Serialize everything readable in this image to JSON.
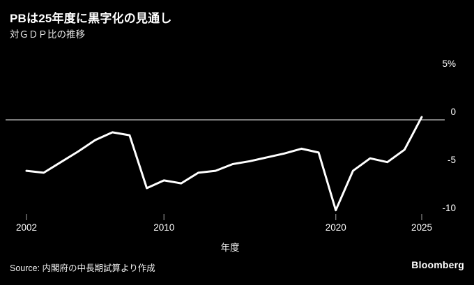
{
  "chart_data": {
    "type": "line",
    "title": "PBは25年度に黒字化の見通し",
    "subtitle": "対ＧＤＰ比の推移",
    "xlabel": "年度",
    "ylabel": "",
    "unit": "%",
    "x": [
      2002,
      2003,
      2004,
      2005,
      2006,
      2007,
      2008,
      2009,
      2010,
      2011,
      2012,
      2013,
      2014,
      2015,
      2016,
      2017,
      2018,
      2019,
      2020,
      2021,
      2022,
      2023,
      2024,
      2025
    ],
    "values": [
      -5.3,
      -5.5,
      -4.4,
      -3.3,
      -2.1,
      -1.3,
      -1.6,
      -7.1,
      -6.3,
      -6.6,
      -5.5,
      -5.3,
      -4.6,
      -4.3,
      -3.9,
      -3.5,
      -3.0,
      -3.4,
      -9.4,
      -5.3,
      -4.0,
      -4.4,
      -3.1,
      0.3
    ],
    "ylim": [
      -10,
      5
    ],
    "xlim": [
      2002,
      2025
    ],
    "y_ticks": [
      {
        "value": 5,
        "label": "5%"
      },
      {
        "value": 0,
        "label": "0"
      },
      {
        "value": -5,
        "label": "-5"
      },
      {
        "value": -10,
        "label": "-10"
      }
    ],
    "x_ticks": [
      {
        "value": 2002,
        "label": "2002"
      },
      {
        "value": 2010,
        "label": "2010"
      },
      {
        "value": 2020,
        "label": "2020"
      },
      {
        "value": 2025,
        "label": "2025"
      }
    ],
    "grid": "zero-line-only",
    "legend": "none",
    "line_color": "#ffffff",
    "zero_line_color": "#c4c4c4",
    "tick_color": "#8a8a8a",
    "background_color": "#000000"
  },
  "footer": {
    "source": "Source: 内閣府の中長期試算より作成",
    "brand": "Bloomberg"
  }
}
